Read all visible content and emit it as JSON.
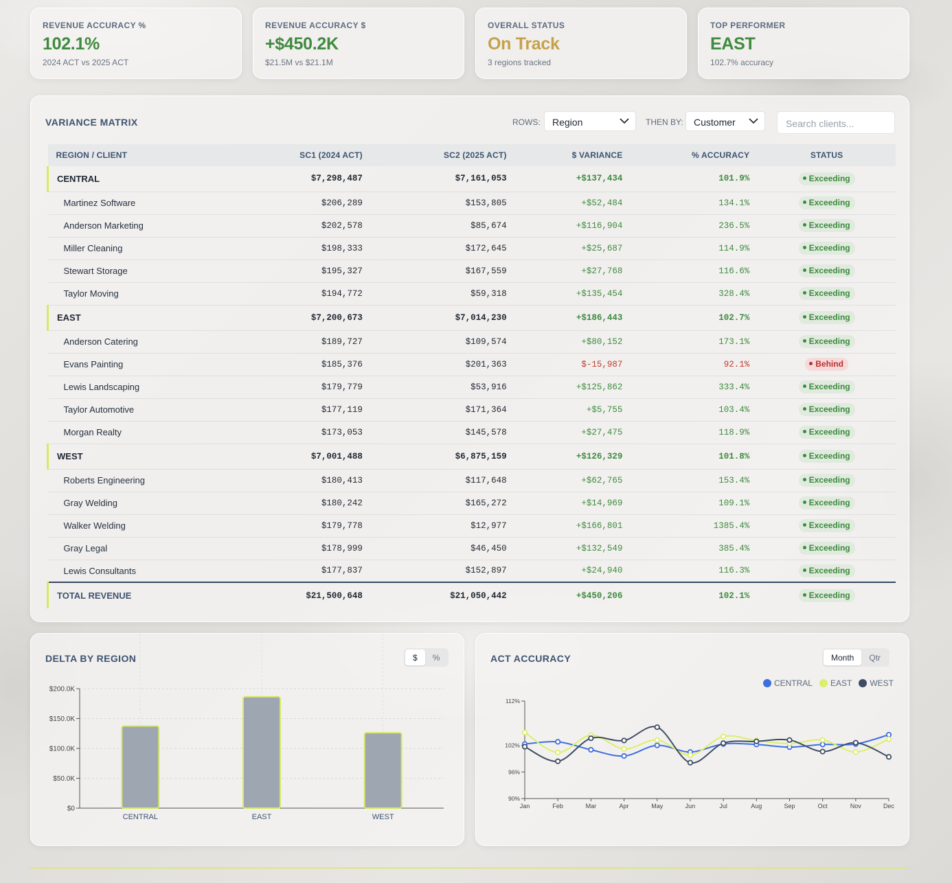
{
  "kpis": [
    {
      "label": "REVENUE ACCURACY %",
      "value": "102.1%",
      "sub": "2024 ACT vs 2025 ACT",
      "color": "#3f8a3f"
    },
    {
      "label": "REVENUE ACCURACY $",
      "value": "+$450.2K",
      "sub": "$21.5M vs $21.1M",
      "color": "#3f8a3f"
    },
    {
      "label": "OVERALL STATUS",
      "value": "On Track",
      "sub": "3 regions tracked",
      "color": "#c5a24a"
    },
    {
      "label": "TOP PERFORMER",
      "value": "EAST",
      "sub": "102.7% accuracy",
      "color": "#3f8a3f"
    }
  ],
  "matrix": {
    "title": "VARIANCE MATRIX",
    "rows_label": "ROWS:",
    "rows_value": "Region",
    "then_label": "THEN BY:",
    "then_value": "Customer",
    "search_placeholder": "Search clients...",
    "headers": [
      "REGION / CLIENT",
      "SC1 (2024 ACT)",
      "SC2 (2025 ACT)",
      "$ VARIANCE",
      "% ACCURACY",
      "STATUS"
    ],
    "regions": [
      {
        "name": "CENTRAL",
        "sc1": "$7,298,487",
        "sc2": "$7,161,053",
        "var": "+$137,434",
        "acc": "101.9%",
        "status": "Exceeding",
        "clients": [
          {
            "name": "Martinez Software",
            "sc1": "$206,289",
            "sc2": "$153,805",
            "var": "+$52,484",
            "acc": "134.1%",
            "status": "Exceeding"
          },
          {
            "name": "Anderson Marketing",
            "sc1": "$202,578",
            "sc2": "$85,674",
            "var": "+$116,904",
            "acc": "236.5%",
            "status": "Exceeding"
          },
          {
            "name": "Miller Cleaning",
            "sc1": "$198,333",
            "sc2": "$172,645",
            "var": "+$25,687",
            "acc": "114.9%",
            "status": "Exceeding"
          },
          {
            "name": "Stewart Storage",
            "sc1": "$195,327",
            "sc2": "$167,559",
            "var": "+$27,768",
            "acc": "116.6%",
            "status": "Exceeding"
          },
          {
            "name": "Taylor Moving",
            "sc1": "$194,772",
            "sc2": "$59,318",
            "var": "+$135,454",
            "acc": "328.4%",
            "status": "Exceeding"
          }
        ]
      },
      {
        "name": "EAST",
        "sc1": "$7,200,673",
        "sc2": "$7,014,230",
        "var": "+$186,443",
        "acc": "102.7%",
        "status": "Exceeding",
        "clients": [
          {
            "name": "Anderson Catering",
            "sc1": "$189,727",
            "sc2": "$109,574",
            "var": "+$80,152",
            "acc": "173.1%",
            "status": "Exceeding"
          },
          {
            "name": "Evans Painting",
            "sc1": "$185,376",
            "sc2": "$201,363",
            "var": "$-15,987",
            "acc": "92.1%",
            "status": "Behind"
          },
          {
            "name": "Lewis Landscaping",
            "sc1": "$179,779",
            "sc2": "$53,916",
            "var": "+$125,862",
            "acc": "333.4%",
            "status": "Exceeding"
          },
          {
            "name": "Taylor Automotive",
            "sc1": "$177,119",
            "sc2": "$171,364",
            "var": "+$5,755",
            "acc": "103.4%",
            "status": "Exceeding"
          },
          {
            "name": "Morgan Realty",
            "sc1": "$173,053",
            "sc2": "$145,578",
            "var": "+$27,475",
            "acc": "118.9%",
            "status": "Exceeding"
          }
        ]
      },
      {
        "name": "WEST",
        "sc1": "$7,001,488",
        "sc2": "$6,875,159",
        "var": "+$126,329",
        "acc": "101.8%",
        "status": "Exceeding",
        "clients": [
          {
            "name": "Roberts Engineering",
            "sc1": "$180,413",
            "sc2": "$117,648",
            "var": "+$62,765",
            "acc": "153.4%",
            "status": "Exceeding"
          },
          {
            "name": "Gray Welding",
            "sc1": "$180,242",
            "sc2": "$165,272",
            "var": "+$14,969",
            "acc": "109.1%",
            "status": "Exceeding"
          },
          {
            "name": "Walker Welding",
            "sc1": "$179,778",
            "sc2": "$12,977",
            "var": "+$166,801",
            "acc": "1385.4%",
            "status": "Exceeding"
          },
          {
            "name": "Gray Legal",
            "sc1": "$178,999",
            "sc2": "$46,450",
            "var": "+$132,549",
            "acc": "385.4%",
            "status": "Exceeding"
          },
          {
            "name": "Lewis Consultants",
            "sc1": "$177,837",
            "sc2": "$152,897",
            "var": "+$24,940",
            "acc": "116.3%",
            "status": "Exceeding"
          }
        ]
      }
    ],
    "total": {
      "name": "TOTAL REVENUE",
      "sc1": "$21,500,648",
      "sc2": "$21,050,442",
      "var": "+$450,206",
      "acc": "102.1%",
      "status": "Exceeding"
    }
  },
  "delta_chart": {
    "title": "DELTA BY REGION",
    "toggle": [
      "$",
      "%"
    ],
    "active": "$"
  },
  "accuracy_chart": {
    "title": "ACT ACCURACY",
    "toggle": [
      "Month",
      "Qtr"
    ],
    "active": "Month"
  },
  "colors": {
    "central": "#3d6ee0",
    "east": "#dcef6a",
    "west": "#3e4d63",
    "bar": "#9ea6b1",
    "bar_border": "#d7ea62"
  },
  "chart_data": [
    {
      "type": "bar",
      "title": "DELTA BY REGION",
      "categories": [
        "CENTRAL",
        "EAST",
        "WEST"
      ],
      "values": [
        137434,
        186443,
        126329
      ],
      "yticks": [
        "$0",
        "$50.0K",
        "$100.0K",
        "$150.0K",
        "$200.0K"
      ],
      "ylim": [
        0,
        200000
      ],
      "xlabel": "",
      "ylabel": ""
    },
    {
      "type": "line",
      "title": "ACT ACCURACY",
      "categories": [
        "Jan",
        "Feb",
        "Mar",
        "Apr",
        "May",
        "Jun",
        "Jul",
        "Aug",
        "Sep",
        "Oct",
        "Nov",
        "Dec"
      ],
      "yticks": [
        "90%",
        "96%",
        "102%",
        "112%"
      ],
      "ylim": [
        90,
        112
      ],
      "series": [
        {
          "name": "CENTRAL",
          "values": [
            102.3,
            102.8,
            101.0,
            99.6,
            102.0,
            100.5,
            102.3,
            102.2,
            101.6,
            102.2,
            102.3,
            104.4
          ]
        },
        {
          "name": "EAST",
          "values": [
            104.9,
            100.4,
            104.3,
            101.2,
            103.2,
            99.8,
            104.0,
            103.1,
            102.4,
            103.2,
            100.5,
            103.4
          ]
        },
        {
          "name": "WEST",
          "values": [
            101.7,
            98.4,
            103.6,
            103.1,
            106.1,
            98.1,
            102.5,
            102.9,
            103.2,
            100.6,
            102.6,
            99.4
          ]
        }
      ]
    }
  ]
}
